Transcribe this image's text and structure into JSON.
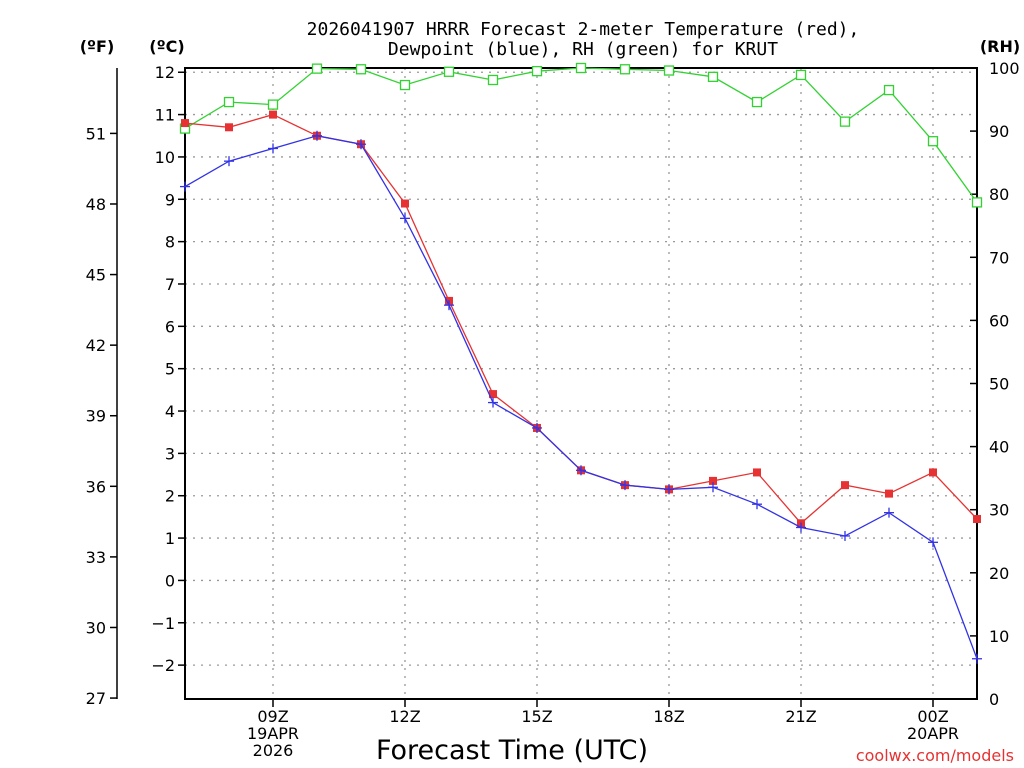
{
  "chart_data": {
    "type": "line",
    "title_line1": "2026041907 HRRR Forecast 2-meter Temperature (red),",
    "title_line2": "Dewpoint (blue), RH (green) for KRUT",
    "xlabel": "Forecast Time (UTC)",
    "left_unit_f": "(ºF)",
    "left_unit_c": "(ºC)",
    "right_unit": "(RH)",
    "x_hours": [
      7,
      8,
      9,
      10,
      11,
      12,
      13,
      14,
      15,
      16,
      17,
      18,
      19,
      20,
      21,
      22,
      23,
      24,
      25
    ],
    "x_range": [
      7,
      25
    ],
    "x_ticks": [
      {
        "hour": 9,
        "lines": [
          "09Z",
          "19APR",
          "2026"
        ]
      },
      {
        "hour": 12,
        "lines": [
          "12Z"
        ]
      },
      {
        "hour": 15,
        "lines": [
          "15Z"
        ]
      },
      {
        "hour": 18,
        "lines": [
          "18Z"
        ]
      },
      {
        "hour": 21,
        "lines": [
          "21Z"
        ]
      },
      {
        "hour": 24,
        "lines": [
          "00Z",
          "20APR"
        ]
      }
    ],
    "celsius_range": [
      -2.8,
      12.1
    ],
    "celsius_ticks": [
      12,
      11,
      10,
      9,
      8,
      7,
      6,
      5,
      4,
      3,
      2,
      1,
      0,
      -1,
      -2
    ],
    "celsius_tick_labels": [
      "12",
      "11",
      "10",
      "9",
      "8",
      "7",
      "6",
      "5",
      "4",
      "3",
      "2",
      "1",
      "0",
      "−1",
      "−2"
    ],
    "fahrenheit_ticks": [
      51,
      48,
      45,
      42,
      39,
      36,
      33,
      30,
      27
    ],
    "rh_range": [
      0,
      100
    ],
    "rh_ticks": [
      100,
      90,
      80,
      70,
      60,
      50,
      40,
      30,
      20,
      10,
      0
    ],
    "series": [
      {
        "name": "Temperature",
        "color": "#e63232",
        "marker": "filled-square",
        "values": [
          10.8,
          10.7,
          11.0,
          10.5,
          10.3,
          8.9,
          6.6,
          4.4,
          3.6,
          2.6,
          2.25,
          2.15,
          2.35,
          2.55,
          1.35,
          2.25,
          2.05,
          2.55,
          1.45
        ]
      },
      {
        "name": "Dewpoint",
        "color": "#3232e6",
        "marker": "plus",
        "values": [
          9.3,
          9.9,
          10.2,
          10.5,
          10.3,
          8.55,
          6.5,
          4.2,
          3.6,
          2.6,
          2.25,
          2.15,
          2.2,
          1.8,
          1.25,
          1.05,
          1.6,
          0.9,
          -1.85
        ]
      },
      {
        "name": "RH",
        "color": "#32d232",
        "marker": "open-square",
        "axis": "right",
        "values": [
          90.4,
          94.6,
          94.2,
          99.9,
          99.8,
          97.3,
          99.4,
          98.1,
          99.5,
          100.0,
          99.8,
          99.6,
          98.6,
          94.6,
          98.9,
          91.5,
          96.5,
          88.4,
          78.7
        ]
      }
    ]
  },
  "footer": {
    "watermark": "coolwx.com/models"
  }
}
